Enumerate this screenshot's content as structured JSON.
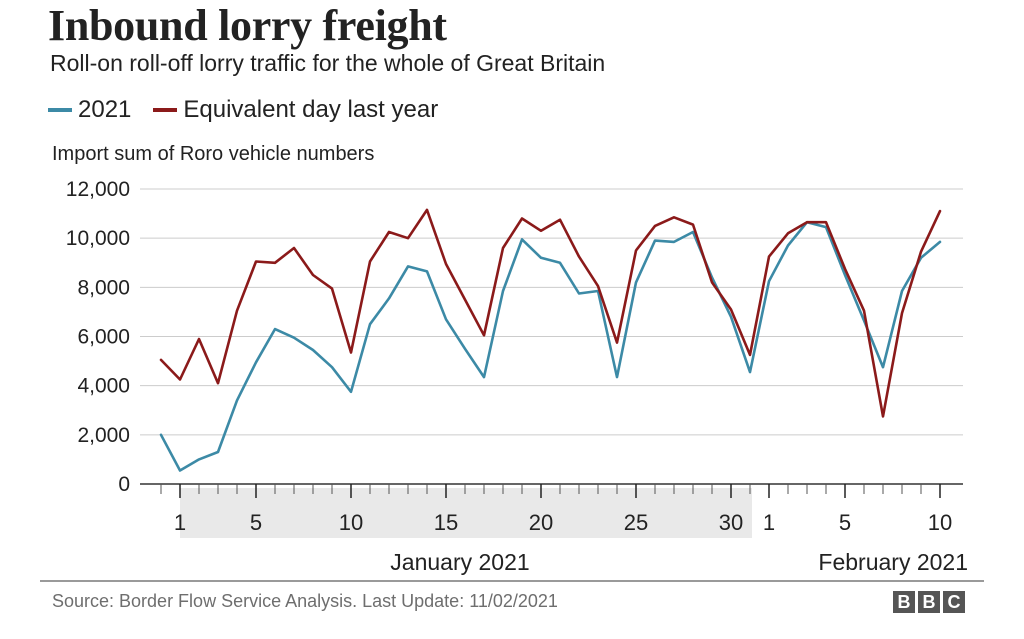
{
  "title": "Inbound lorry freight",
  "subtitle": "Roll-on roll-off lorry traffic for the whole of Great Britain",
  "source": "Source: Border Flow Service Analysis. Last Update: 11/02/2021",
  "logo": [
    "B",
    "B",
    "C"
  ],
  "colors": {
    "series_2021": "#3c8aa6",
    "series_last_year": "#8b1a1a",
    "grid": "#cccccc",
    "shade": "#e9e9e9"
  },
  "legend": [
    {
      "label": "2021",
      "color": "#3c8aa6"
    },
    {
      "label": "Equivalent day last year",
      "color": "#8b1a1a"
    }
  ],
  "chart_data": {
    "type": "line",
    "title": "Inbound lorry freight",
    "subtitle": "Roll-on roll-off lorry traffic for the whole of Great Britain",
    "ylabel": "Import sum of Roro vehicle numbers",
    "ylim": [
      0,
      12000
    ],
    "yticks": [
      0,
      2000,
      4000,
      6000,
      8000,
      10000,
      12000
    ],
    "ytick_labels": [
      "0",
      "2,000",
      "4,000",
      "6,000",
      "8,000",
      "10,000",
      "12,000"
    ],
    "grid": true,
    "legend_position": "top-left",
    "x": [
      "2020-12-31",
      "2021-01-01",
      "2021-01-02",
      "2021-01-03",
      "2021-01-04",
      "2021-01-05",
      "2021-01-06",
      "2021-01-07",
      "2021-01-08",
      "2021-01-09",
      "2021-01-10",
      "2021-01-11",
      "2021-01-12",
      "2021-01-13",
      "2021-01-14",
      "2021-01-15",
      "2021-01-16",
      "2021-01-17",
      "2021-01-18",
      "2021-01-19",
      "2021-01-20",
      "2021-01-21",
      "2021-01-22",
      "2021-01-23",
      "2021-01-24",
      "2021-01-25",
      "2021-01-26",
      "2021-01-27",
      "2021-01-28",
      "2021-01-29",
      "2021-01-30",
      "2021-01-31",
      "2021-02-01",
      "2021-02-02",
      "2021-02-03",
      "2021-02-04",
      "2021-02-05",
      "2021-02-06",
      "2021-02-07",
      "2021-02-08",
      "2021-02-09",
      "2021-02-10"
    ],
    "series": [
      {
        "name": "2021",
        "color": "#3c8aa6",
        "values": [
          2000,
          550,
          1000,
          1300,
          3400,
          4950,
          6300,
          5950,
          5450,
          4750,
          3750,
          6500,
          7550,
          8850,
          8650,
          6700,
          5500,
          4350,
          7850,
          9950,
          9200,
          9000,
          7750,
          7850,
          4350,
          8200,
          9900,
          9850,
          10250,
          8400,
          6800,
          4550,
          8250,
          9700,
          10650,
          10450,
          8500,
          6650,
          4750,
          7850,
          9200,
          9850
        ]
      },
      {
        "name": "Equivalent day last year",
        "color": "#8b1a1a",
        "values": [
          5050,
          4250,
          5900,
          4100,
          7050,
          9050,
          9000,
          9600,
          8500,
          7950,
          5350,
          9050,
          10250,
          10000,
          11150,
          8950,
          7500,
          6050,
          9600,
          10800,
          10300,
          10750,
          9250,
          8050,
          5750,
          9500,
          10500,
          10850,
          10550,
          8200,
          7100,
          5250,
          9250,
          10200,
          10650,
          10650,
          8750,
          7050,
          2750,
          6950,
          9450,
          11100
        ]
      }
    ],
    "xtick_labels": [
      {
        "date": "2021-01-01",
        "label": "1"
      },
      {
        "date": "2021-01-05",
        "label": "5"
      },
      {
        "date": "2021-01-10",
        "label": "10"
      },
      {
        "date": "2021-01-15",
        "label": "15"
      },
      {
        "date": "2021-01-20",
        "label": "20"
      },
      {
        "date": "2021-01-25",
        "label": "25"
      },
      {
        "date": "2021-01-30",
        "label": "30"
      },
      {
        "date": "2021-02-01",
        "label": "1"
      },
      {
        "date": "2021-02-05",
        "label": "5"
      },
      {
        "date": "2021-02-10",
        "label": "10"
      }
    ],
    "month_labels": [
      {
        "label": "January 2021",
        "start": "2021-01-01",
        "end": "2021-01-31"
      },
      {
        "label": "February 2021",
        "start": "2021-02-01",
        "end": "2021-02-10"
      }
    ]
  }
}
